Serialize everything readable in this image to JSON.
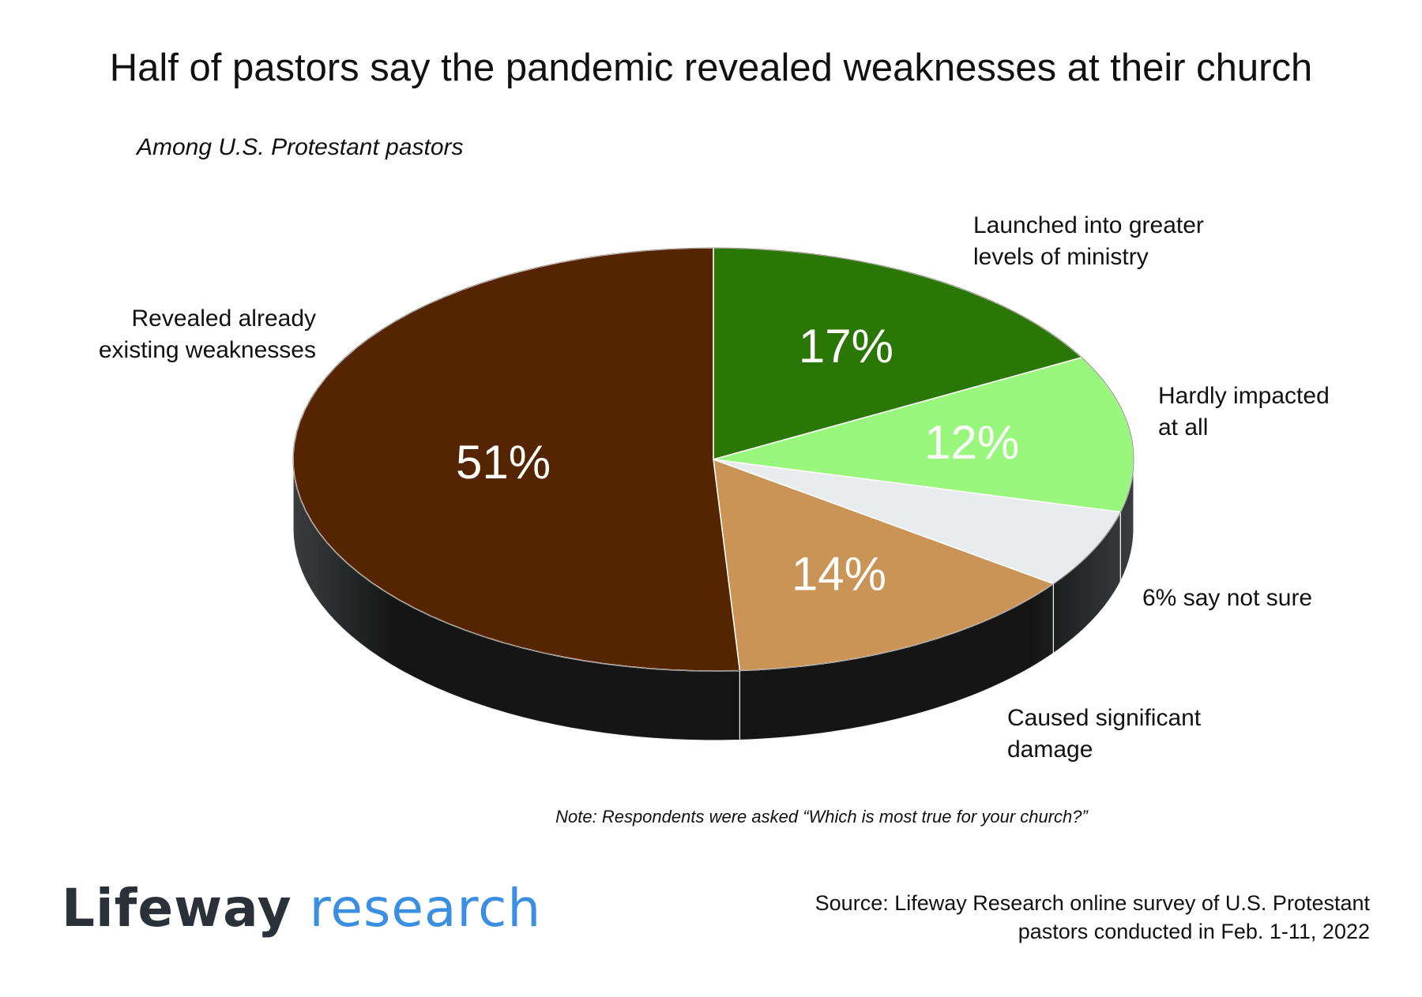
{
  "title": "Half of pastors say the pandemic revealed weaknesses at their church",
  "subtitle": "Among U.S. Protestant pastors",
  "chart_data": {
    "type": "pie",
    "categories": [
      "Launched into greater levels of ministry",
      "Hardly impacted at all",
      "6% say not sure",
      "Caused significant damage",
      "Revealed already existing weaknesses"
    ],
    "values": [
      17,
      12,
      6,
      14,
      51
    ],
    "value_labels": [
      "17%",
      "12%",
      "",
      "14%",
      "51%"
    ],
    "colors": [
      "#2a7706",
      "#98f77c",
      "#e8ecec",
      "#c99455",
      "#552401"
    ]
  },
  "labels": {
    "launched_1": "Launched into greater",
    "launched_2": "levels of ministry",
    "hardly_1": "Hardly impacted",
    "hardly_2": "at all",
    "notsure": "6% say not sure",
    "caused_1": "Caused significant",
    "caused_2": "damage",
    "revealed_1": "Revealed already",
    "revealed_2": "existing weaknesses"
  },
  "note": "Note: Respondents were asked “Which is most true for your church?”",
  "logo": {
    "bold": "Lifeway",
    "light": "research"
  },
  "source": {
    "line1": "Source: Lifeway Research online survey of U.S. Protestant",
    "line2": "pastors conducted in Feb. 1-11, 2022"
  }
}
